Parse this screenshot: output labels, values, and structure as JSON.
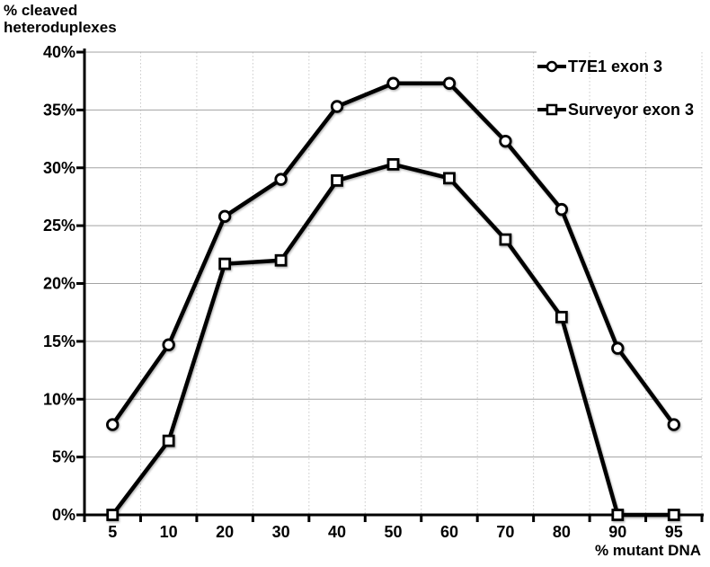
{
  "figure": {
    "y_axis_title_line1": "% cleaved",
    "y_axis_title_line2": "heteroduplexes",
    "x_axis_title": "% mutant DNA"
  },
  "chart_data": {
    "type": "line",
    "title": "",
    "xlabel": "% mutant DNA",
    "ylabel": "% cleaved heteroduplexes",
    "categories": [
      5,
      10,
      20,
      30,
      40,
      50,
      60,
      70,
      80,
      90,
      95
    ],
    "x_tick_labels": [
      "5",
      "10",
      "20",
      "30",
      "40",
      "50",
      "60",
      "70",
      "80",
      "90",
      "95"
    ],
    "y_tick_labels": [
      "0%",
      "5%",
      "10%",
      "15%",
      "20%",
      "25%",
      "30%",
      "35%",
      "40%"
    ],
    "y_tick_values": [
      0,
      5,
      10,
      15,
      20,
      25,
      30,
      35,
      40
    ],
    "ylim": [
      0,
      40
    ],
    "grid": {
      "horizontal_solid": true,
      "vertical_dotted": true
    },
    "legend_position": "inside-top-right",
    "series": [
      {
        "name": "T7E1 exon 3",
        "marker": "circle",
        "values": [
          7.8,
          14.7,
          25.8,
          29.0,
          35.3,
          37.3,
          37.3,
          32.3,
          26.4,
          14.4,
          7.8
        ]
      },
      {
        "name": "Surveyor exon 3",
        "marker": "square",
        "values": [
          0,
          6.4,
          21.7,
          22.0,
          28.9,
          30.3,
          29.1,
          23.8,
          17.1,
          0,
          0
        ]
      }
    ],
    "colors": {
      "line": "#000000",
      "marker_fill": "#ffffff",
      "marker_stroke": "#000000",
      "gridline": "#a3a3a3",
      "vertical_gridline": "#c9c9c9",
      "axis": "#000000",
      "text": "#000000",
      "background": "#ffffff"
    }
  }
}
